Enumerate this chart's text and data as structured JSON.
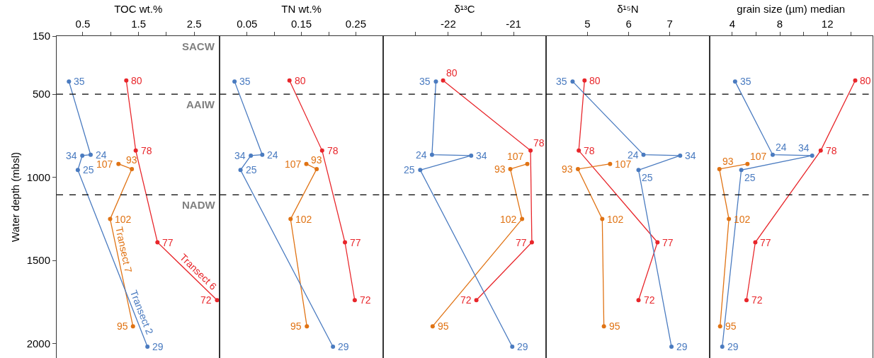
{
  "chart_data": [
    {
      "type": "line",
      "xlabel": "TOC wt.%",
      "ylabel": "Water depth (mbsl)",
      "xlim": [
        0.03,
        2.96
      ],
      "xticks": [
        0.5,
        {
          "value": 1.0,
          "label": null
        },
        1.5,
        {
          "value": 2.0,
          "label": null
        },
        2.5
      ],
      "ylim": [
        2087,
        150
      ],
      "yticks": [
        150,
        500,
        1000,
        1500,
        2000
      ],
      "marker": "circle",
      "line_style": "solid",
      "ref_lines": [
        {
          "axis": "y",
          "value": 500,
          "color": "#000000",
          "line_style": "dashed"
        },
        {
          "axis": "y",
          "value": 1105,
          "color": "#000000",
          "line_style": "dashed"
        }
      ],
      "annotations": [
        "SACW",
        "AAIW",
        "NADW",
        {
          "text": "80",
          "x": 1.28,
          "y": 417
        },
        {
          "text": "78",
          "x": 1.45,
          "y": 839
        },
        {
          "text": "77",
          "x": 1.84,
          "y": 1391
        },
        {
          "text": "72",
          "x": 2.91,
          "y": 1739
        },
        {
          "text": "107",
          "x": 1.14,
          "y": 919
        },
        {
          "text": "93",
          "x": 1.38,
          "y": 950
        },
        {
          "text": "102",
          "x": 0.99,
          "y": 1251
        },
        {
          "text": "95",
          "x": 1.4,
          "y": 1896
        },
        {
          "text": "35",
          "x": 0.25,
          "y": 423
        },
        {
          "text": "24",
          "x": 0.64,
          "y": 864
        },
        {
          "text": "34",
          "x": 0.49,
          "y": 869
        },
        {
          "text": "25",
          "x": 0.41,
          "y": 956
        },
        {
          "text": "29",
          "x": 1.66,
          "y": 2019
        }
      ],
      "series": [
        {
          "name": "Transect 6",
          "color": "#e8262b",
          "x": [
            1.28,
            1.45,
            1.84,
            2.91
          ],
          "values": [
            417,
            839,
            1391,
            1739
          ]
        },
        {
          "name": "Transect 7",
          "color": "#e07314",
          "x": [
            1.14,
            1.38,
            0.99,
            1.4
          ],
          "values": [
            919,
            950,
            1251,
            1896
          ]
        },
        {
          "name": "Transect 2",
          "color": "#4a7bc0",
          "x": [
            0.25,
            0.64,
            0.49,
            0.41,
            1.66
          ],
          "values": [
            423,
            864,
            869,
            956,
            2019
          ]
        }
      ]
    },
    {
      "type": "line",
      "xlabel": "TN wt.%",
      "xlim": [
        0,
        0.3
      ],
      "xticks": [
        0.05,
        {
          "value": 0.1,
          "label": null
        },
        0.15,
        {
          "value": 0.2,
          "label": null
        },
        0.25
      ],
      "ylim": [
        2087,
        150
      ],
      "tick_labels": "x",
      "marker": "circle",
      "line_style": "solid",
      "ref_lines": [
        {
          "axis": "y",
          "value": 500,
          "color": "#000000",
          "line_style": "dashed"
        },
        {
          "axis": "y",
          "value": 1105,
          "color": "#000000",
          "line_style": "dashed"
        }
      ],
      "annotations": [
        {
          "text": "80",
          "x": 0.128,
          "y": 417
        },
        {
          "text": "78",
          "x": 0.188,
          "y": 839
        },
        {
          "text": "77",
          "x": 0.23,
          "y": 1391
        },
        {
          "text": "72",
          "x": 0.248,
          "y": 1739
        },
        {
          "text": "107",
          "x": 0.159,
          "y": 919
        },
        {
          "text": "93",
          "x": 0.178,
          "y": 950
        },
        {
          "text": "102",
          "x": 0.13,
          "y": 1251
        },
        {
          "text": "95",
          "x": 0.16,
          "y": 1896
        },
        {
          "text": "35",
          "x": 0.027,
          "y": 423
        },
        {
          "text": "24",
          "x": 0.078,
          "y": 864
        },
        {
          "text": "34",
          "x": 0.057,
          "y": 869
        },
        {
          "text": "25",
          "x": 0.038,
          "y": 956
        },
        {
          "text": "29",
          "x": 0.208,
          "y": 2019
        }
      ],
      "series": [
        {
          "color": "#e8262b",
          "x": [
            0.128,
            0.188,
            0.23,
            0.248
          ],
          "values": [
            417,
            839,
            1391,
            1739
          ]
        },
        {
          "color": "#e07314",
          "x": [
            0.159,
            0.178,
            0.13,
            0.16
          ],
          "values": [
            919,
            950,
            1251,
            1896
          ]
        },
        {
          "color": "#4a7bc0",
          "x": [
            0.027,
            0.078,
            0.057,
            0.038,
            0.208
          ],
          "values": [
            423,
            864,
            869,
            956,
            2019
          ]
        }
      ]
    },
    {
      "type": "line",
      "xlabel": "δ¹³C",
      "xlim": [
        -23.0,
        -20.5
      ],
      "xticks": [
        {
          "value": -22.5,
          "label": null
        },
        -22,
        {
          "value": -21.5,
          "label": null
        },
        -21
      ],
      "ylim": [
        2087,
        150
      ],
      "tick_labels": "x",
      "marker": "circle",
      "line_style": "solid",
      "ref_lines": [
        {
          "axis": "y",
          "value": 500,
          "color": "#000000",
          "line_style": "dashed"
        },
        {
          "axis": "y",
          "value": 1105,
          "color": "#000000",
          "line_style": "dashed"
        }
      ],
      "annotations": [
        {
          "text": "80",
          "x": -22.08,
          "y": 417
        },
        {
          "text": "78",
          "x": -20.74,
          "y": 839
        },
        {
          "text": "77",
          "x": -20.72,
          "y": 1391
        },
        {
          "text": "72",
          "x": -21.57,
          "y": 1739
        },
        {
          "text": "107",
          "x": -20.79,
          "y": 919
        },
        {
          "text": "93",
          "x": -21.05,
          "y": 950
        },
        {
          "text": "102",
          "x": -20.87,
          "y": 1251
        },
        {
          "text": "95",
          "x": -22.24,
          "y": 1896
        },
        {
          "text": "35",
          "x": -22.19,
          "y": 423
        },
        {
          "text": "24",
          "x": -22.25,
          "y": 864
        },
        {
          "text": "34",
          "x": -21.65,
          "y": 869
        },
        {
          "text": "25",
          "x": -22.43,
          "y": 956
        },
        {
          "text": "29",
          "x": -21.02,
          "y": 2019
        }
      ],
      "series": [
        {
          "color": "#e8262b",
          "x": [
            -22.08,
            -20.74,
            -20.72,
            -21.57
          ],
          "values": [
            417,
            839,
            1391,
            1739
          ]
        },
        {
          "color": "#e07314",
          "x": [
            -20.79,
            -21.05,
            -20.87,
            -22.24
          ],
          "values": [
            919,
            950,
            1251,
            1896
          ]
        },
        {
          "color": "#4a7bc0",
          "x": [
            -22.19,
            -22.25,
            -21.65,
            -22.43,
            -21.02
          ],
          "values": [
            423,
            864,
            869,
            956,
            2019
          ]
        }
      ]
    },
    {
      "type": "line",
      "xlabel": "δ¹⁵N",
      "xlim": [
        4.0,
        7.96
      ],
      "xticks": [
        5,
        6,
        7
      ],
      "ylim": [
        2087,
        150
      ],
      "tick_labels": "x",
      "marker": "circle",
      "line_style": "solid",
      "ref_lines": [
        {
          "axis": "y",
          "value": 500,
          "color": "#000000",
          "line_style": "dashed"
        },
        {
          "axis": "y",
          "value": 1105,
          "color": "#000000",
          "line_style": "dashed"
        }
      ],
      "annotations": [
        {
          "text": "80",
          "x": 4.93,
          "y": 417
        },
        {
          "text": "78",
          "x": 4.79,
          "y": 839
        },
        {
          "text": "77",
          "x": 6.7,
          "y": 1391
        },
        {
          "text": "72",
          "x": 6.24,
          "y": 1739
        },
        {
          "text": "107",
          "x": 5.55,
          "y": 919
        },
        {
          "text": "93",
          "x": 4.77,
          "y": 950
        },
        {
          "text": "102",
          "x": 5.36,
          "y": 1251
        },
        {
          "text": "95",
          "x": 5.4,
          "y": 1896
        },
        {
          "text": "35",
          "x": 4.64,
          "y": 423
        },
        {
          "text": "24",
          "x": 6.36,
          "y": 864
        },
        {
          "text": "34",
          "x": 7.25,
          "y": 869
        },
        {
          "text": "25",
          "x": 6.24,
          "y": 956
        },
        {
          "text": "29",
          "x": 7.04,
          "y": 2019
        }
      ],
      "series": [
        {
          "color": "#e8262b",
          "x": [
            4.93,
            4.79,
            6.7,
            6.24
          ],
          "values": [
            417,
            839,
            1391,
            1739
          ]
        },
        {
          "color": "#e07314",
          "x": [
            5.55,
            4.77,
            5.36,
            5.4
          ],
          "values": [
            919,
            950,
            1251,
            1896
          ]
        },
        {
          "color": "#4a7bc0",
          "x": [
            4.64,
            6.36,
            7.25,
            6.24,
            7.04
          ],
          "values": [
            423,
            864,
            869,
            956,
            2019
          ]
        }
      ]
    },
    {
      "type": "line",
      "xlabel": "grain size (µm) median",
      "xlim": [
        2.08,
        15.8
      ],
      "xticks": [
        4,
        {
          "value": 6,
          "label": null
        },
        8,
        {
          "value": 10,
          "label": null
        },
        12,
        {
          "value": 14,
          "label": null
        }
      ],
      "ylim": [
        2087,
        150
      ],
      "tick_labels": "x",
      "marker": "circle",
      "line_style": "solid",
      "ref_lines": [
        {
          "axis": "y",
          "value": 500,
          "color": "#000000",
          "line_style": "dashed"
        },
        {
          "axis": "y",
          "value": 1105,
          "color": "#000000",
          "line_style": "dashed"
        }
      ],
      "annotations": [
        {
          "text": "80",
          "x": 14.34,
          "y": 417
        },
        {
          "text": "78",
          "x": 11.44,
          "y": 839
        },
        {
          "text": "77",
          "x": 5.94,
          "y": 1391
        },
        {
          "text": "72",
          "x": 5.2,
          "y": 1739
        },
        {
          "text": "107",
          "x": 5.28,
          "y": 919
        },
        {
          "text": "93",
          "x": 2.92,
          "y": 950
        },
        {
          "text": "102",
          "x": 3.72,
          "y": 1251
        },
        {
          "text": "95",
          "x": 2.98,
          "y": 1896
        },
        {
          "text": "35",
          "x": 4.24,
          "y": 423
        },
        {
          "text": "24",
          "x": 7.4,
          "y": 864
        },
        {
          "text": "34",
          "x": 10.72,
          "y": 869
        },
        {
          "text": "25",
          "x": 4.76,
          "y": 956
        },
        {
          "text": "29",
          "x": 3.16,
          "y": 2019
        }
      ],
      "series": [
        {
          "color": "#e8262b",
          "x": [
            14.34,
            11.44,
            5.94,
            5.2
          ],
          "values": [
            417,
            839,
            1391,
            1739
          ]
        },
        {
          "color": "#e07314",
          "x": [
            5.28,
            2.92,
            3.72,
            2.98
          ],
          "values": [
            919,
            950,
            1251,
            1896
          ]
        },
        {
          "color": "#4a7bc0",
          "x": [
            4.24,
            7.4,
            10.72,
            4.76,
            3.16
          ],
          "values": [
            423,
            864,
            869,
            956,
            2019
          ]
        }
      ]
    }
  ]
}
